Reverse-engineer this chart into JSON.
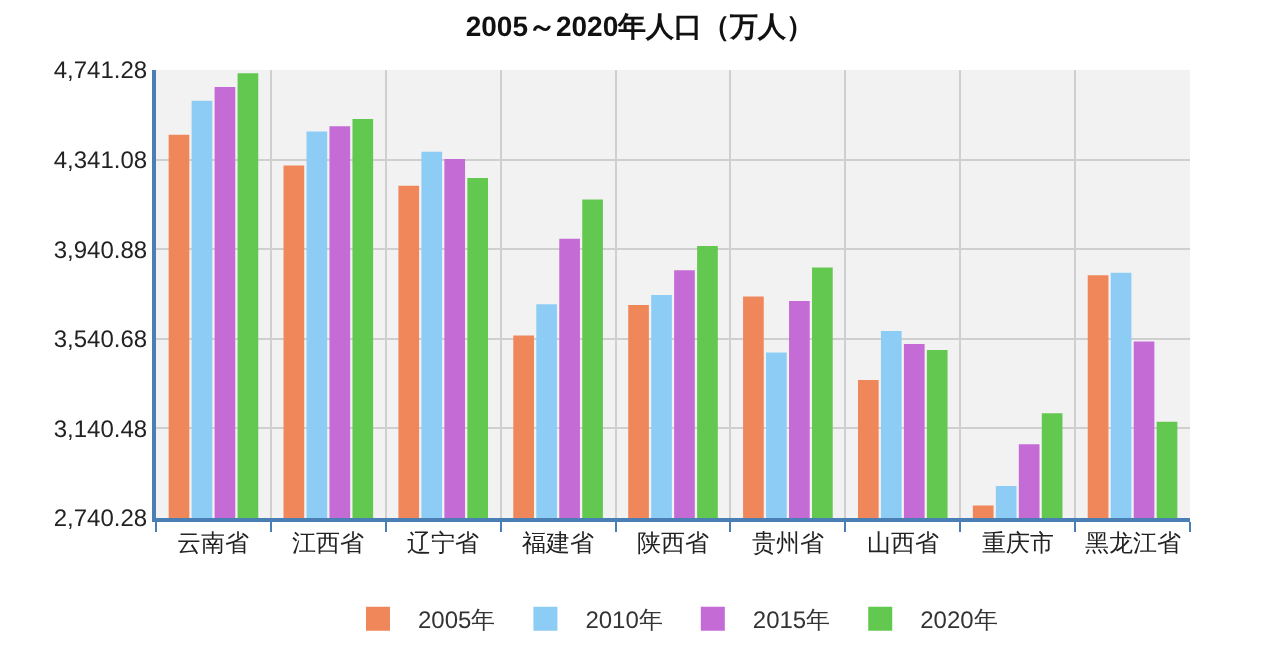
{
  "chart_data": {
    "type": "bar",
    "title": "2005～2020年人口（万人）",
    "categories": [
      "云南省",
      "江西省",
      "辽宁省",
      "福建省",
      "陕西省",
      "贵州省",
      "山西省",
      "重庆市",
      "黑龙江省"
    ],
    "series": [
      {
        "name": "2005年",
        "color": "#f0875a",
        "values": [
          4452,
          4315,
          4224,
          3555,
          3692,
          3730,
          3357,
          2796,
          3824
        ]
      },
      {
        "name": "2010年",
        "color": "#8dcdf5",
        "values": [
          4604,
          4467,
          4376,
          3695,
          3736,
          3479,
          3576,
          2883,
          3836
        ]
      },
      {
        "name": "2015年",
        "color": "#c56bd6",
        "values": [
          4665,
          4490,
          4344,
          3988,
          3847,
          3710,
          3517,
          3070,
          3529
        ]
      },
      {
        "name": "2020年",
        "color": "#63c850",
        "values": [
          4727,
          4522,
          4259,
          4163,
          3955,
          3859,
          3491,
          3208,
          3170
        ]
      }
    ],
    "ylim": [
      2740.28,
      4741.28
    ],
    "yticks": [
      {
        "value": 2740.28,
        "label": "2,740.28"
      },
      {
        "value": 3140.48,
        "label": "3,140.48"
      },
      {
        "value": 3540.68,
        "label": "3,540.68"
      },
      {
        "value": 3940.88,
        "label": "3,940.88"
      },
      {
        "value": 4341.08,
        "label": "4,341.08"
      },
      {
        "value": 4741.28,
        "label": "4,741.28"
      }
    ],
    "grid": true,
    "legend": "bottom"
  }
}
